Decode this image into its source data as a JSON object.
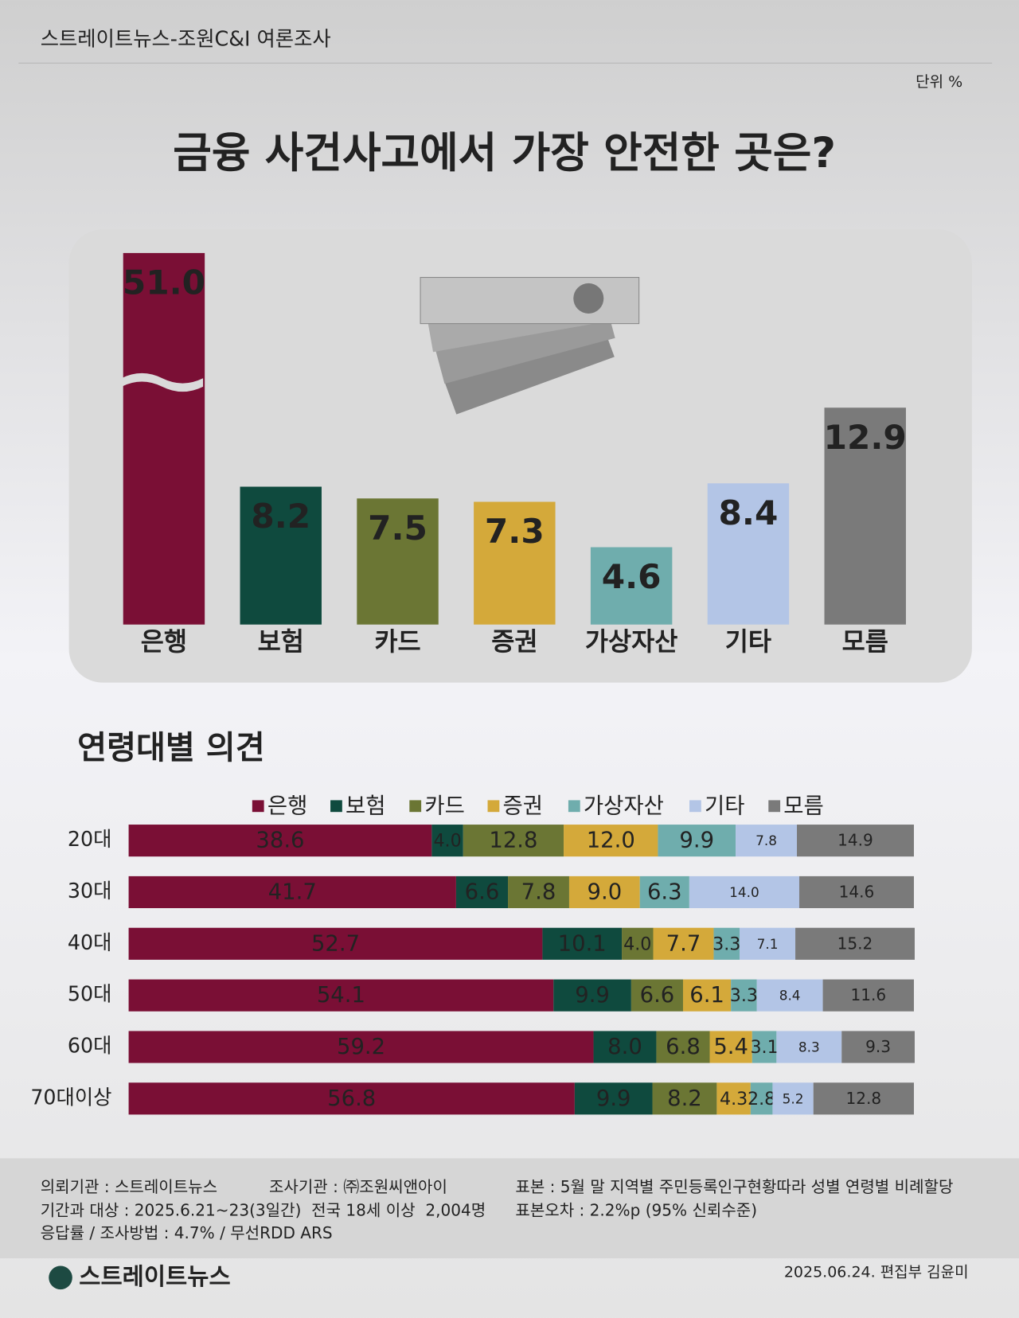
{
  "header": {
    "source": "스트레이트뉴스-조원C&I 여론조사",
    "unit": "단위 %",
    "title": "금융 사건사고에서 가장 안전한 곳은?"
  },
  "chart_data": [
    {
      "type": "bar",
      "categories": [
        "은행",
        "보험",
        "카드",
        "증권",
        "가상자산",
        "기타",
        "모름"
      ],
      "values": [
        51.0,
        8.2,
        7.5,
        7.3,
        4.6,
        8.4,
        12.9
      ],
      "value_labels": [
        "51.0",
        "8.2",
        "7.5",
        "7.3",
        "4.6",
        "8.4",
        "12.9"
      ],
      "colors": [
        "#7a0f35",
        "#0f4a3e",
        "#6b7634",
        "#d4a93a",
        "#6fadad",
        "#b3c5e6",
        "#7a7a7a"
      ]
    },
    {
      "type": "stacked-hbar",
      "title": "연령대별 의견",
      "categories": [
        "20대",
        "30대",
        "40대",
        "50대",
        "60대",
        "70대이상"
      ],
      "xlim": [
        0,
        100
      ],
      "series": [
        {
          "name": "은행",
          "color": "#7a0f35",
          "values": [
            38.6,
            41.7,
            52.7,
            54.1,
            59.2,
            56.8
          ],
          "value_labels": [
            "38.6",
            "41.7",
            "52.7",
            "54.1",
            "59.2",
            "56.8"
          ]
        },
        {
          "name": "보험",
          "color": "#0f4a3e",
          "values": [
            4.0,
            6.6,
            10.1,
            9.9,
            8.0,
            9.9
          ],
          "value_labels": [
            "4.0",
            "6.6",
            "10.1",
            "9.9",
            "8.0",
            "9.9"
          ]
        },
        {
          "name": "카드",
          "color": "#6b7634",
          "values": [
            12.8,
            7.8,
            4.0,
            6.6,
            6.8,
            8.2
          ],
          "value_labels": [
            "12.8",
            "7.8",
            "4.0",
            "6.6",
            "6.8",
            "8.2"
          ]
        },
        {
          "name": "증권",
          "color": "#d4a93a",
          "values": [
            12.0,
            9.0,
            7.7,
            6.1,
            5.4,
            4.3
          ],
          "value_labels": [
            "12.0",
            "9.0",
            "7.7",
            "6.1",
            "5.4",
            "4.3"
          ]
        },
        {
          "name": "가상자산",
          "color": "#6fadad",
          "values": [
            9.9,
            6.3,
            3.3,
            3.3,
            3.1,
            2.8
          ],
          "value_labels": [
            "9.9",
            "6.3",
            "3.3",
            "3.3",
            "3.1",
            "2.8"
          ]
        },
        {
          "name": "기타",
          "color": "#b3c5e6",
          "values": [
            7.8,
            14.0,
            7.1,
            8.4,
            8.3,
            5.2
          ],
          "value_labels": [
            "7.8",
            "14.0",
            "7.1",
            "8.4",
            "8.3",
            "5.2"
          ]
        },
        {
          "name": "모름",
          "color": "#7a7a7a",
          "values": [
            14.9,
            14.6,
            15.2,
            11.6,
            9.3,
            12.8
          ],
          "value_labels": [
            "14.9",
            "14.6",
            "15.2",
            "11.6",
            "9.3",
            "12.8"
          ]
        }
      ]
    }
  ],
  "footer": {
    "notes": [
      "의뢰기관 : 스트레이트뉴스",
      "조사기관 : ㈜조원씨앤아이",
      "표본 : 5월 말 지역별 주민등록인구현황따라 성별 연령별 비례할당",
      "기간과 대상 : 2025.6.21~23(3일간)  전국 18세 이상  2,004명",
      "표본오차 : 2.2%p (95% 신뢰수준)",
      "응답률 / 조사방법 : 4.7% / 무선RDD ARS"
    ],
    "logo": "스트레이트뉴스",
    "credit": "2025.06.24. 편집부 김윤미"
  }
}
